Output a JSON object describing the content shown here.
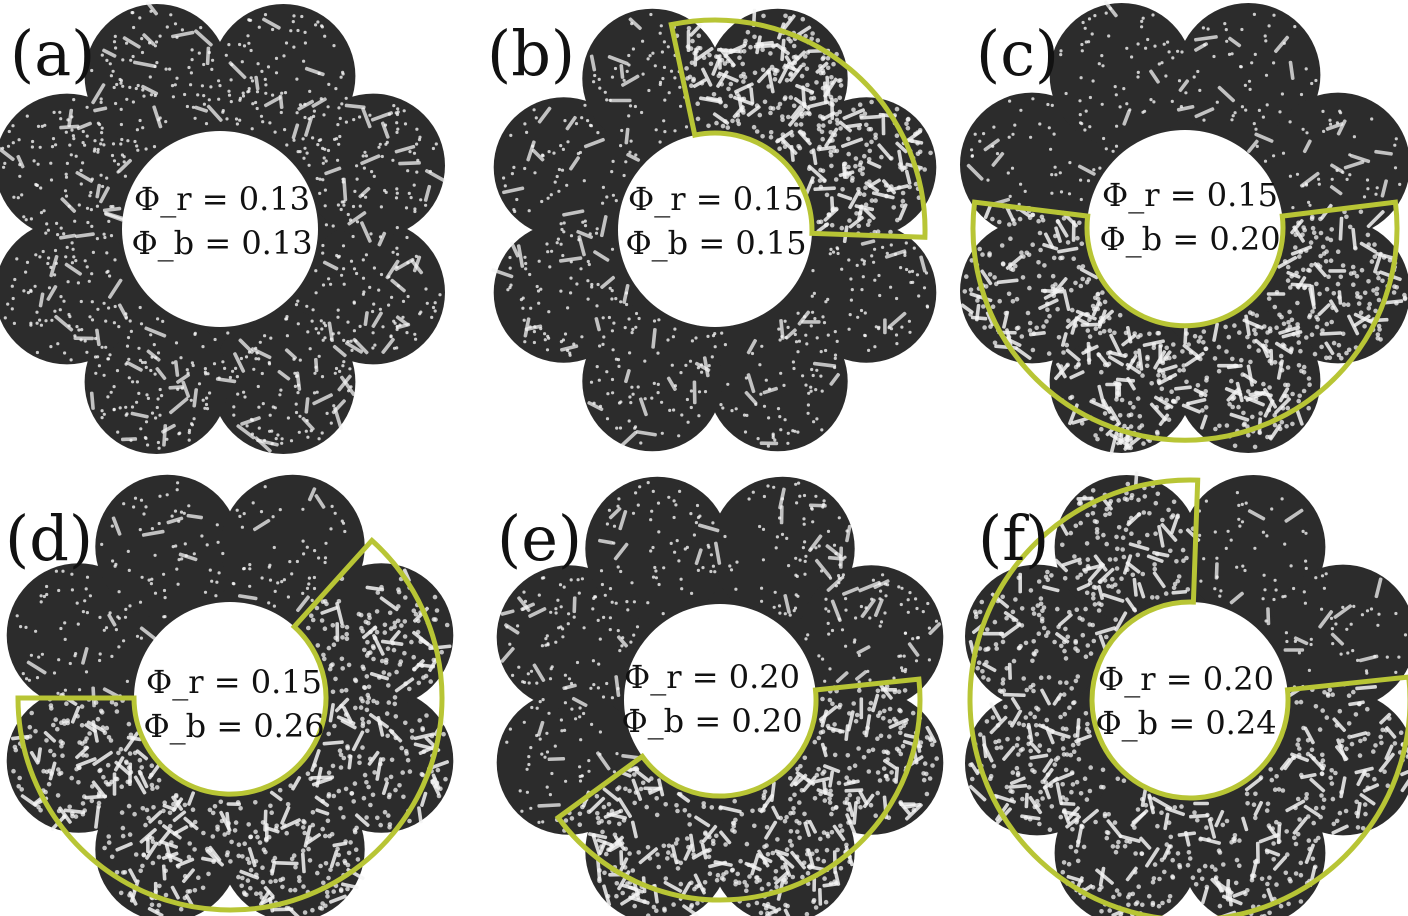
{
  "figure": {
    "highlight_color": "#b8c535",
    "chamber_color": "#2c2c2c",
    "panels": [
      {
        "label": "(a)",
        "phi_r": "Φ_r = 0.13",
        "phi_b": "Φ_b = 0.13",
        "highlight": "none"
      },
      {
        "label": "(b)",
        "phi_r": "Φ_r = 0.15",
        "phi_b": "Φ_b = 0.15",
        "highlight": "upper-right sector"
      },
      {
        "label": "(c)",
        "phi_r": "Φ_r = 0.15",
        "phi_b": "Φ_b = 0.20",
        "highlight": "lower half sector"
      },
      {
        "label": "(d)",
        "phi_r": "Φ_r = 0.15",
        "phi_b": "Φ_b = 0.26",
        "highlight": "right and lower sector"
      },
      {
        "label": "(e)",
        "phi_r": "Φ_r = 0.20",
        "phi_b": "Φ_b = 0.20",
        "highlight": "lower-right sector"
      },
      {
        "label": "(f)",
        "phi_r": "Φ_r = 0.20",
        "phi_b": "Φ_b = 0.24",
        "highlight": "large sector excluding lower-right"
      }
    ]
  }
}
